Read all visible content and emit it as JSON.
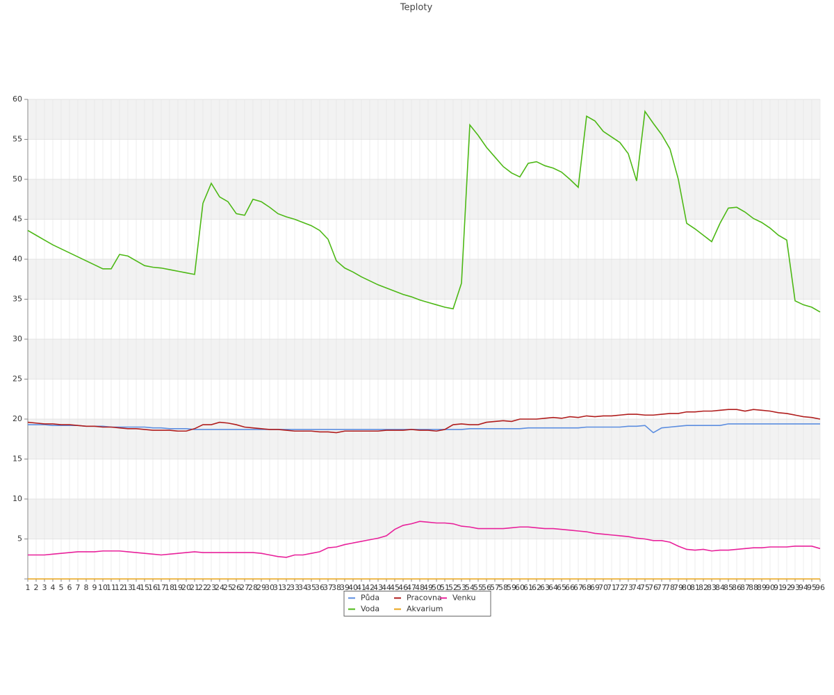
{
  "chart_data": {
    "type": "line",
    "title": "Teploty",
    "categories": [
      1,
      2,
      3,
      4,
      5,
      6,
      7,
      8,
      9,
      10,
      11,
      12,
      13,
      14,
      15,
      16,
      17,
      18,
      19,
      20,
      21,
      22,
      23,
      24,
      25,
      26,
      27,
      28,
      29,
      30,
      31,
      32,
      33,
      34,
      35,
      36,
      37,
      38,
      39,
      40,
      41,
      42,
      43,
      44,
      45,
      46,
      47,
      48,
      49,
      50,
      51,
      52,
      53,
      54,
      55,
      56,
      57,
      58,
      59,
      60,
      61,
      62,
      63,
      64,
      65,
      66,
      67,
      68,
      69,
      70,
      71,
      72,
      73,
      74,
      75,
      76,
      77,
      78,
      79,
      80,
      81,
      82,
      83,
      84,
      85,
      86,
      87,
      88,
      89,
      90,
      91,
      92,
      93,
      94,
      95,
      96
    ],
    "series": [
      {
        "name": "Půda",
        "color": "#5b8de0",
        "values": [
          19.3,
          19.3,
          19.3,
          19.2,
          19.2,
          19.2,
          19.2,
          19.1,
          19.1,
          19.1,
          19.0,
          19.0,
          19.0,
          19.0,
          19.0,
          18.9,
          18.9,
          18.8,
          18.8,
          18.8,
          18.7,
          18.7,
          18.7,
          18.7,
          18.7,
          18.7,
          18.7,
          18.7,
          18.7,
          18.7,
          18.7,
          18.7,
          18.7,
          18.7,
          18.7,
          18.7,
          18.7,
          18.7,
          18.7,
          18.7,
          18.7,
          18.7,
          18.7,
          18.7,
          18.7,
          18.7,
          18.7,
          18.7,
          18.7,
          18.7,
          18.7,
          18.7,
          18.7,
          18.8,
          18.8,
          18.8,
          18.8,
          18.8,
          18.8,
          18.8,
          18.9,
          18.9,
          18.9,
          18.9,
          18.9,
          18.9,
          18.9,
          19.0,
          19.0,
          19.0,
          19.0,
          19.0,
          19.1,
          19.1,
          19.2,
          18.3,
          18.9,
          19.0,
          19.1,
          19.2,
          19.2,
          19.2,
          19.2,
          19.2,
          19.4,
          19.4,
          19.4,
          19.4,
          19.4,
          19.4,
          19.4,
          19.4,
          19.4,
          19.4,
          19.4,
          19.4
        ]
      },
      {
        "name": "Voda",
        "color": "#4cb814",
        "values": [
          43.6,
          43.0,
          42.4,
          41.8,
          41.3,
          40.8,
          40.3,
          39.8,
          39.3,
          38.8,
          38.8,
          40.6,
          40.4,
          39.8,
          39.2,
          39.0,
          38.9,
          38.7,
          38.5,
          38.3,
          38.1,
          47.0,
          49.5,
          47.8,
          47.2,
          45.7,
          45.5,
          47.5,
          47.2,
          46.5,
          45.7,
          45.3,
          45.0,
          44.6,
          44.2,
          43.6,
          42.5,
          39.8,
          38.9,
          38.4,
          37.8,
          37.3,
          36.8,
          36.4,
          36.0,
          35.6,
          35.3,
          34.9,
          34.6,
          34.3,
          34.0,
          33.8,
          37.0,
          56.8,
          55.5,
          54.0,
          52.8,
          51.6,
          50.8,
          50.3,
          52.0,
          52.2,
          51.7,
          51.4,
          50.9,
          50.0,
          49.0,
          57.9,
          57.3,
          56.0,
          55.3,
          54.6,
          53.2,
          49.8,
          58.5,
          57.0,
          55.6,
          53.8,
          50.0,
          44.5,
          43.8,
          43.0,
          42.2,
          44.5,
          46.4,
          46.5,
          45.9,
          45.1,
          44.6,
          43.9,
          43.0,
          42.4,
          34.8,
          34.3,
          34.0,
          33.4
        ]
      },
      {
        "name": "Pracovna",
        "color": "#b01c1c",
        "values": [
          19.6,
          19.5,
          19.4,
          19.4,
          19.3,
          19.3,
          19.2,
          19.1,
          19.1,
          19.0,
          19.0,
          18.9,
          18.8,
          18.8,
          18.7,
          18.6,
          18.6,
          18.6,
          18.5,
          18.5,
          18.8,
          19.3,
          19.3,
          19.6,
          19.5,
          19.3,
          19.0,
          18.9,
          18.8,
          18.7,
          18.7,
          18.6,
          18.5,
          18.5,
          18.5,
          18.4,
          18.4,
          18.3,
          18.5,
          18.5,
          18.5,
          18.5,
          18.5,
          18.6,
          18.6,
          18.6,
          18.7,
          18.6,
          18.6,
          18.5,
          18.7,
          19.3,
          19.4,
          19.3,
          19.3,
          19.6,
          19.7,
          19.8,
          19.7,
          20.0,
          20.0,
          20.0,
          20.1,
          20.2,
          20.1,
          20.3,
          20.2,
          20.4,
          20.3,
          20.4,
          20.4,
          20.5,
          20.6,
          20.6,
          20.5,
          20.5,
          20.6,
          20.7,
          20.7,
          20.9,
          20.9,
          21.0,
          21.0,
          21.1,
          21.2,
          21.2,
          21.0,
          21.2,
          21.1,
          21.0,
          20.8,
          20.7,
          20.5,
          20.3,
          20.2,
          20.0
        ]
      },
      {
        "name": "Akvarium",
        "color": "#e8a317",
        "values": [
          0,
          0,
          0,
          0,
          0,
          0,
          0,
          0,
          0,
          0,
          0,
          0,
          0,
          0,
          0,
          0,
          0,
          0,
          0,
          0,
          0,
          0,
          0,
          0,
          0,
          0,
          0,
          0,
          0,
          0,
          0,
          0,
          0,
          0,
          0,
          0,
          0,
          0,
          0,
          0,
          0,
          0,
          0,
          0,
          0,
          0,
          0,
          0,
          0,
          0,
          0,
          0,
          0,
          0,
          0,
          0,
          0,
          0,
          0,
          0,
          0,
          0,
          0,
          0,
          0,
          0,
          0,
          0,
          0,
          0,
          0,
          0,
          0,
          0,
          0,
          0,
          0,
          0,
          0,
          0,
          0,
          0,
          0,
          0,
          0,
          0,
          0,
          0,
          0,
          0,
          0,
          0,
          0,
          0,
          0,
          0
        ]
      },
      {
        "name": "Venku",
        "color": "#e8209a",
        "values": [
          3.0,
          3.0,
          3.0,
          3.1,
          3.2,
          3.3,
          3.4,
          3.4,
          3.4,
          3.5,
          3.5,
          3.5,
          3.4,
          3.3,
          3.2,
          3.1,
          3.0,
          3.1,
          3.2,
          3.3,
          3.4,
          3.3,
          3.3,
          3.3,
          3.3,
          3.3,
          3.3,
          3.3,
          3.2,
          3.0,
          2.8,
          2.7,
          3.0,
          3.0,
          3.2,
          3.4,
          3.9,
          4.0,
          4.3,
          4.5,
          4.7,
          4.9,
          5.1,
          5.4,
          6.2,
          6.7,
          6.9,
          7.2,
          7.1,
          7.0,
          7.0,
          6.9,
          6.6,
          6.5,
          6.3,
          6.3,
          6.3,
          6.3,
          6.4,
          6.5,
          6.5,
          6.4,
          6.3,
          6.3,
          6.2,
          6.1,
          6.0,
          5.9,
          5.7,
          5.6,
          5.5,
          5.4,
          5.3,
          5.1,
          5.0,
          4.8,
          4.8,
          4.6,
          4.1,
          3.7,
          3.6,
          3.7,
          3.5,
          3.6,
          3.6,
          3.7,
          3.8,
          3.9,
          3.9,
          4.0,
          4.0,
          4.0,
          4.1,
          4.1,
          4.1,
          3.8
        ]
      }
    ],
    "ylim": [
      0,
      60
    ],
    "yticks": [
      5,
      10,
      15,
      20,
      25,
      30,
      35,
      40,
      45,
      50,
      55,
      60
    ],
    "grid": true,
    "legend": "bottom"
  }
}
